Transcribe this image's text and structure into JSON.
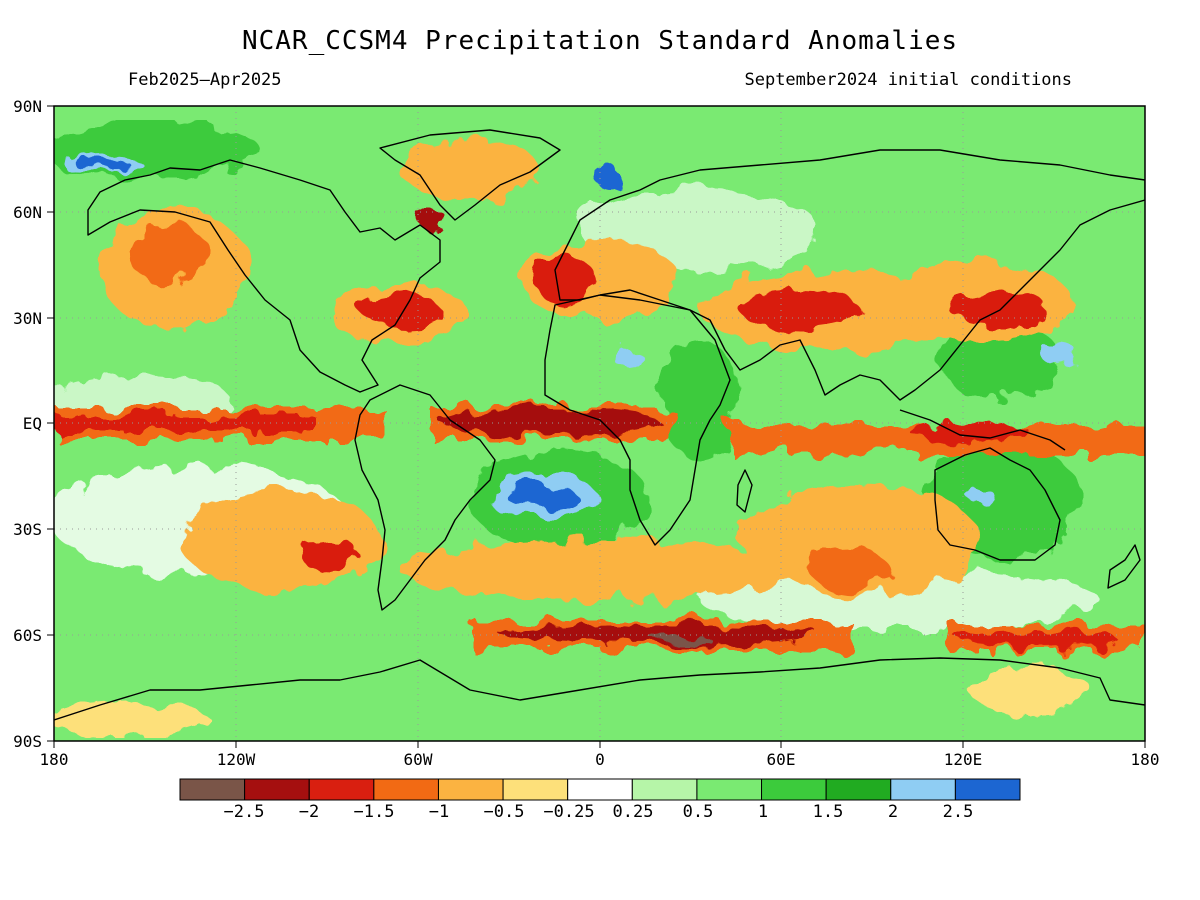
{
  "header": {
    "title": "NCAR_CCSM4 Precipitation Standard Anomalies",
    "period": "Feb2025–Apr2025",
    "init": "September2024 initial conditions"
  },
  "axes": {
    "lat_labels": [
      "90N",
      "60N",
      "30N",
      "EQ",
      "30S",
      "60S",
      "90S"
    ],
    "lon_labels": [
      "180",
      "120W",
      "60W",
      "0",
      "60E",
      "120E",
      "180"
    ]
  },
  "colorbar": {
    "labels": [
      "−2.5",
      "−2",
      "−1.5",
      "−1",
      "−0.5",
      "−0.25",
      "0.25",
      "0.5",
      "1",
      "1.5",
      "2",
      "2.5"
    ],
    "colors": [
      "#7a5548",
      "#a50f0f",
      "#d91f10",
      "#f26a14",
      "#fbb341",
      "#fde07a",
      "#ffffff",
      "#b6f5a8",
      "#7aea72",
      "#3ccb3c",
      "#21ab21",
      "#8fcdf3",
      "#1c66d2"
    ]
  },
  "map": {
    "colors": {
      "land_outline": "#000000",
      "wet_green": "#7aea72",
      "dry_orange": "#f26a14",
      "dry_red": "#a50f0f",
      "wet_blue": "#1c66d2"
    }
  }
}
